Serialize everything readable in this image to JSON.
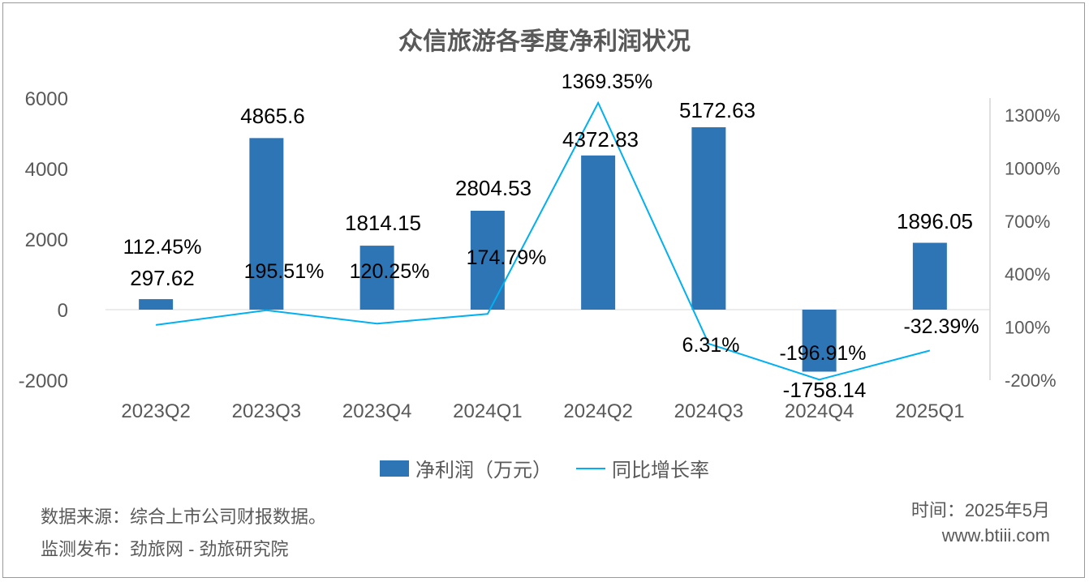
{
  "chart_data": {
    "type": "bar",
    "title": "众信旅游各季度净利润状况",
    "categories": [
      "2023Q2",
      "2023Q3",
      "2023Q4",
      "2024Q1",
      "2024Q2",
      "2024Q3",
      "2024Q4",
      "2025Q1"
    ],
    "series": [
      {
        "name": "净利润（万元）",
        "type": "bar",
        "axis": "left",
        "color": "#2e75b6",
        "values": [
          297.62,
          4865.6,
          1814.15,
          2804.53,
          4372.83,
          5172.63,
          -1758.14,
          1896.05
        ],
        "labels": [
          "297.62",
          "4865.6",
          "1814.15",
          "2804.53",
          "4372.83",
          "5172.63",
          "-1758.14",
          "1896.05"
        ]
      },
      {
        "name": "同比增长率",
        "type": "line",
        "axis": "right",
        "color": "#00b0f0",
        "values": [
          112.45,
          195.51,
          120.25,
          174.79,
          1369.35,
          6.31,
          -196.91,
          -32.39
        ],
        "labels": [
          "112.45%",
          "195.51%",
          "120.25%",
          "174.79%",
          "1369.35%",
          "6.31%",
          "-196.91%",
          "-32.39%"
        ]
      }
    ],
    "y_left": {
      "range": [
        -2000,
        6000
      ],
      "ticks": [
        -2000,
        0,
        2000,
        4000,
        6000
      ],
      "tick_labels": [
        "-2000",
        "0",
        "2000",
        "4000",
        "6000"
      ]
    },
    "y_right": {
      "range": [
        -200,
        1300
      ],
      "ticks": [
        -200,
        100,
        400,
        700,
        1000,
        1300
      ],
      "tick_labels": [
        "-200%",
        "100%",
        "400%",
        "700%",
        "1000%",
        "1300%"
      ]
    },
    "grid": false,
    "legend_position": "bottom"
  },
  "footer": {
    "source": "数据来源：综合上市公司财报数据。",
    "publisher": "监测发布：劲旅网 - 劲旅研究院",
    "time": "时间：2025年5月",
    "website": "www.btiii.com"
  }
}
